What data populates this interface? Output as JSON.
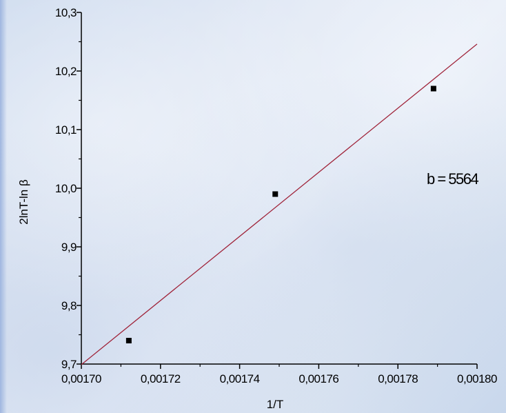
{
  "chart_data": {
    "type": "scatter",
    "xlabel": "1/T",
    "ylabel": "2lnT-ln β",
    "xlim": [
      0.0017,
      0.0018
    ],
    "ylim": [
      9.7,
      10.3
    ],
    "x_ticks": [
      0.0017,
      0.00172,
      0.00174,
      0.00176,
      0.00178,
      0.0018
    ],
    "x_tick_labels": [
      "0,00170",
      "0,00172",
      "0,00174",
      "0,00176",
      "0,00178",
      "0,00180"
    ],
    "y_ticks": [
      9.7,
      9.8,
      9.9,
      10.0,
      10.1,
      10.2,
      10.3
    ],
    "y_tick_labels": [
      "9,7",
      "9,8",
      "9,9",
      "10,0",
      "10,1",
      "10,2",
      "10,3"
    ],
    "series": [
      {
        "type": "scatter",
        "x": [
          0.001712,
          0.001749,
          0.001789
        ],
        "y": [
          9.74,
          9.99,
          10.17
        ],
        "color": "#000000"
      },
      {
        "type": "line",
        "x": [
          0.0017,
          0.0018
        ],
        "y": [
          9.699,
          10.246
        ],
        "color": "#a0243a"
      }
    ],
    "annotation": "b = 5564",
    "grid": false
  }
}
